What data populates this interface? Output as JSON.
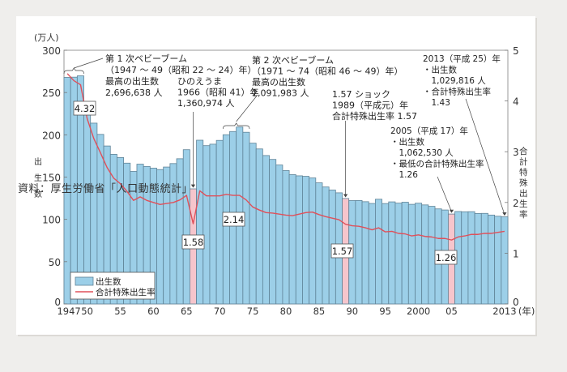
{
  "chart_data": {
    "type": "bar+line",
    "title": "",
    "xlabel": "(年)",
    "ylabel_left": "出生数",
    "ylabel_left_unit": "(万人)",
    "ylabel_right": "合計特殊出生率",
    "ylim_left": [
      0,
      300
    ],
    "ylim_right": [
      0,
      5
    ],
    "yticks_left": [
      0,
      50,
      100,
      150,
      200,
      250,
      300
    ],
    "yticks_right": [
      0,
      1,
      2,
      3,
      4,
      5
    ],
    "xtick_labels": [
      {
        "year": 1947,
        "label": "1947"
      },
      {
        "year": 1950,
        "label": "50"
      },
      {
        "year": 1955,
        "label": "55"
      },
      {
        "year": 1960,
        "label": "60"
      },
      {
        "year": 1965,
        "label": "65"
      },
      {
        "year": 1970,
        "label": "70"
      },
      {
        "year": 1975,
        "label": "75"
      },
      {
        "year": 1980,
        "label": "80"
      },
      {
        "year": 1985,
        "label": "85"
      },
      {
        "year": 1990,
        "label": "90"
      },
      {
        "year": 1995,
        "label": "95"
      },
      {
        "year": 2000,
        "label": "2000"
      },
      {
        "year": 2005,
        "label": "05"
      },
      {
        "year": 2013,
        "label": "2013"
      }
    ],
    "grid": false,
    "legend_position": "lower-left",
    "legend": [
      {
        "label": "出生数",
        "type": "bar",
        "color": "#9ccfe8"
      },
      {
        "label": "合計特殊出生率",
        "type": "line",
        "color": "#e0505a"
      }
    ],
    "years": [
      1947,
      1948,
      1949,
      1950,
      1951,
      1952,
      1953,
      1954,
      1955,
      1956,
      1957,
      1958,
      1959,
      1960,
      1961,
      1962,
      1963,
      1964,
      1965,
      1966,
      1967,
      1968,
      1969,
      1970,
      1971,
      1972,
      1973,
      1974,
      1975,
      1976,
      1977,
      1978,
      1979,
      1980,
      1981,
      1982,
      1983,
      1984,
      1985,
      1986,
      1987,
      1988,
      1989,
      1990,
      1991,
      1992,
      1993,
      1994,
      1995,
      1996,
      1997,
      1998,
      1999,
      2000,
      2001,
      2002,
      2003,
      2004,
      2005,
      2006,
      2007,
      2008,
      2009,
      2010,
      2011,
      2012,
      2013
    ],
    "series": [
      {
        "name": "出生数",
        "unit": "万人",
        "axis": "left",
        "values": [
          267.9,
          268.2,
          269.7,
          233.8,
          213.8,
          200.5,
          186.8,
          176.9,
          173.1,
          166.5,
          156.7,
          165.3,
          162.6,
          160.6,
          158.9,
          161.9,
          166.0,
          171.7,
          182.4,
          136.1,
          193.6,
          187.2,
          188.9,
          193.4,
          200.1,
          203.9,
          209.2,
          203.0,
          190.1,
          183.3,
          175.5,
          170.9,
          164.3,
          157.7,
          152.9,
          151.5,
          150.9,
          149.0,
          143.2,
          138.3,
          134.7,
          131.4,
          124.7,
          122.2,
          122.3,
          120.9,
          118.8,
          123.8,
          118.7,
          120.7,
          119.2,
          120.3,
          117.8,
          119.1,
          117.1,
          115.4,
          112.4,
          111.1,
          106.3,
          109.3,
          109.0,
          109.1,
          107.0,
          107.1,
          105.1,
          103.7,
          103.0
        ]
      },
      {
        "name": "合計特殊出生率",
        "axis": "right",
        "values": [
          4.54,
          4.4,
          4.32,
          3.65,
          3.26,
          2.98,
          2.69,
          2.48,
          2.37,
          2.22,
          2.04,
          2.11,
          2.04,
          2.0,
          1.96,
          1.98,
          2.0,
          2.05,
          2.14,
          1.58,
          2.23,
          2.13,
          2.13,
          2.13,
          2.16,
          2.14,
          2.14,
          2.05,
          1.91,
          1.85,
          1.8,
          1.79,
          1.77,
          1.75,
          1.74,
          1.77,
          1.8,
          1.81,
          1.76,
          1.72,
          1.69,
          1.66,
          1.57,
          1.54,
          1.53,
          1.5,
          1.46,
          1.5,
          1.42,
          1.43,
          1.39,
          1.38,
          1.34,
          1.36,
          1.33,
          1.32,
          1.29,
          1.29,
          1.26,
          1.32,
          1.34,
          1.37,
          1.37,
          1.39,
          1.39,
          1.41,
          1.43
        ]
      }
    ],
    "highlighted_years": [
      1966,
      1989,
      2005
    ],
    "highlight_color": "#f6c5cc",
    "value_labels": [
      {
        "year": 1949,
        "text": "4.32"
      },
      {
        "year": 1966,
        "text": "1.58"
      },
      {
        "year": 1972,
        "text": "2.14"
      },
      {
        "year": 1989,
        "text": "1.57"
      },
      {
        "year": 2005,
        "text": "1.26"
      }
    ],
    "annotations": [
      {
        "id": "boom1",
        "lines": [
          "第 1 次ベビーブーム",
          "（1947 ～ 49（昭和 22 ～ 24）年）",
          "最高の出生数",
          "2,696,638 人"
        ]
      },
      {
        "id": "hinoeuma",
        "lines": [
          "ひのえうま",
          "1966（昭和 41）年",
          "1,360,974 人"
        ]
      },
      {
        "id": "boom2",
        "lines": [
          "第 2 次ベビーブーム",
          "（1971 ～ 74（昭和 46 ～ 49）年）",
          "最高の出生数",
          "2,091,983 人"
        ]
      },
      {
        "id": "shock157",
        "lines": [
          "1.57 ショック",
          "1989（平成元）年",
          "合計特殊出生率 1.57"
        ]
      },
      {
        "id": "y2005",
        "lines": [
          "2005（平成 17）年",
          "・出生数",
          "　1,062,530 人",
          "・最低の合計特殊出生率",
          "　1.26"
        ]
      },
      {
        "id": "y2013",
        "lines": [
          "2013（平成 25）年",
          "・出生数",
          "　1,029,816 人",
          "・合計特殊出生率",
          "　1.43"
        ]
      }
    ]
  },
  "source": "資料：厚生労働省「人口動態統計」"
}
